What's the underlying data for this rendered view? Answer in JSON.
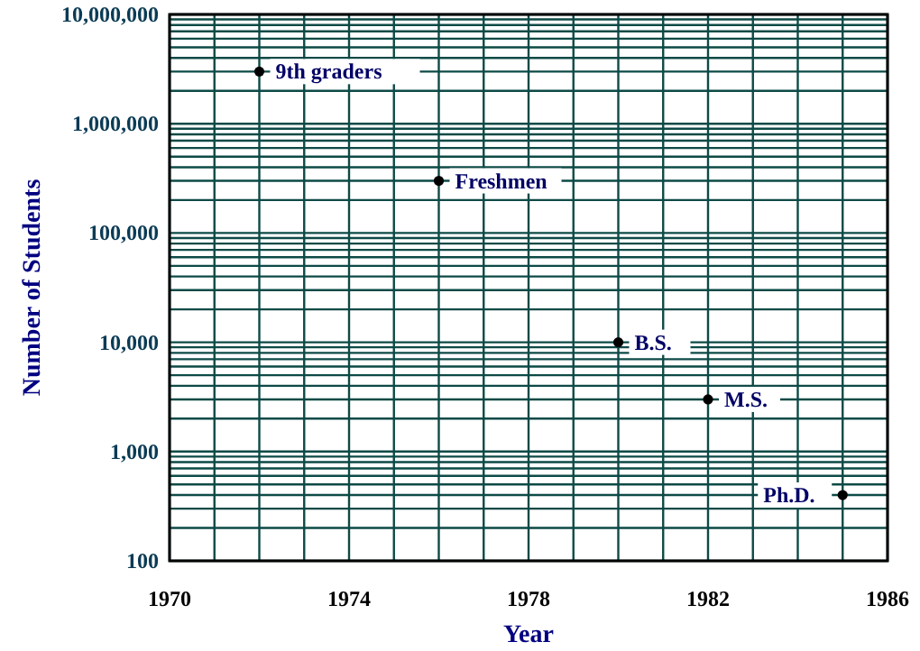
{
  "chart_data": {
    "type": "scatter",
    "xlabel": "Year",
    "ylabel": "Number of Students",
    "x": [
      1972,
      1976,
      1980,
      1982,
      1985
    ],
    "values": [
      3000000,
      300000,
      10000,
      3000,
      400
    ],
    "color": "#000000",
    "marker": "circle",
    "log": "y",
    "grid": true,
    "xlim": [
      1970,
      1986
    ],
    "xticks": [
      1970,
      {
        "value": 1971,
        "label": null
      },
      {
        "value": 1972,
        "label": null
      },
      {
        "value": 1973,
        "label": null
      },
      1974,
      {
        "value": 1975,
        "label": null
      },
      {
        "value": 1976,
        "label": null
      },
      {
        "value": 1977,
        "label": null
      },
      1978,
      {
        "value": 1979,
        "label": null
      },
      {
        "value": 1980,
        "label": null
      },
      {
        "value": 1981,
        "label": null
      },
      1982,
      {
        "value": 1983,
        "label": null
      },
      {
        "value": 1984,
        "label": null
      },
      {
        "value": 1985,
        "label": null
      },
      1986
    ],
    "ylim": [
      100,
      10000000
    ],
    "yticks": [
      {
        "value": 100,
        "label": "100"
      },
      {
        "value": 1000,
        "label": "1,000"
      },
      {
        "value": 10000,
        "label": "10,000"
      },
      {
        "value": 100000,
        "label": "100,000"
      },
      {
        "value": 1000000,
        "label": "1,000,000"
      },
      {
        "value": 10000000,
        "label": "10,000,000"
      }
    ],
    "annotations": [
      {
        "text": "9th graders",
        "x": 1972,
        "y": 3000000
      },
      {
        "text": "Freshmen",
        "x": 1976,
        "y": 300000
      },
      {
        "text": "B.S.",
        "x": 1980,
        "y": 10000
      },
      {
        "text": "M.S.",
        "x": 1982,
        "y": 3000
      },
      {
        "text": "Ph.D.",
        "x": 1985,
        "y": 400
      }
    ]
  }
}
